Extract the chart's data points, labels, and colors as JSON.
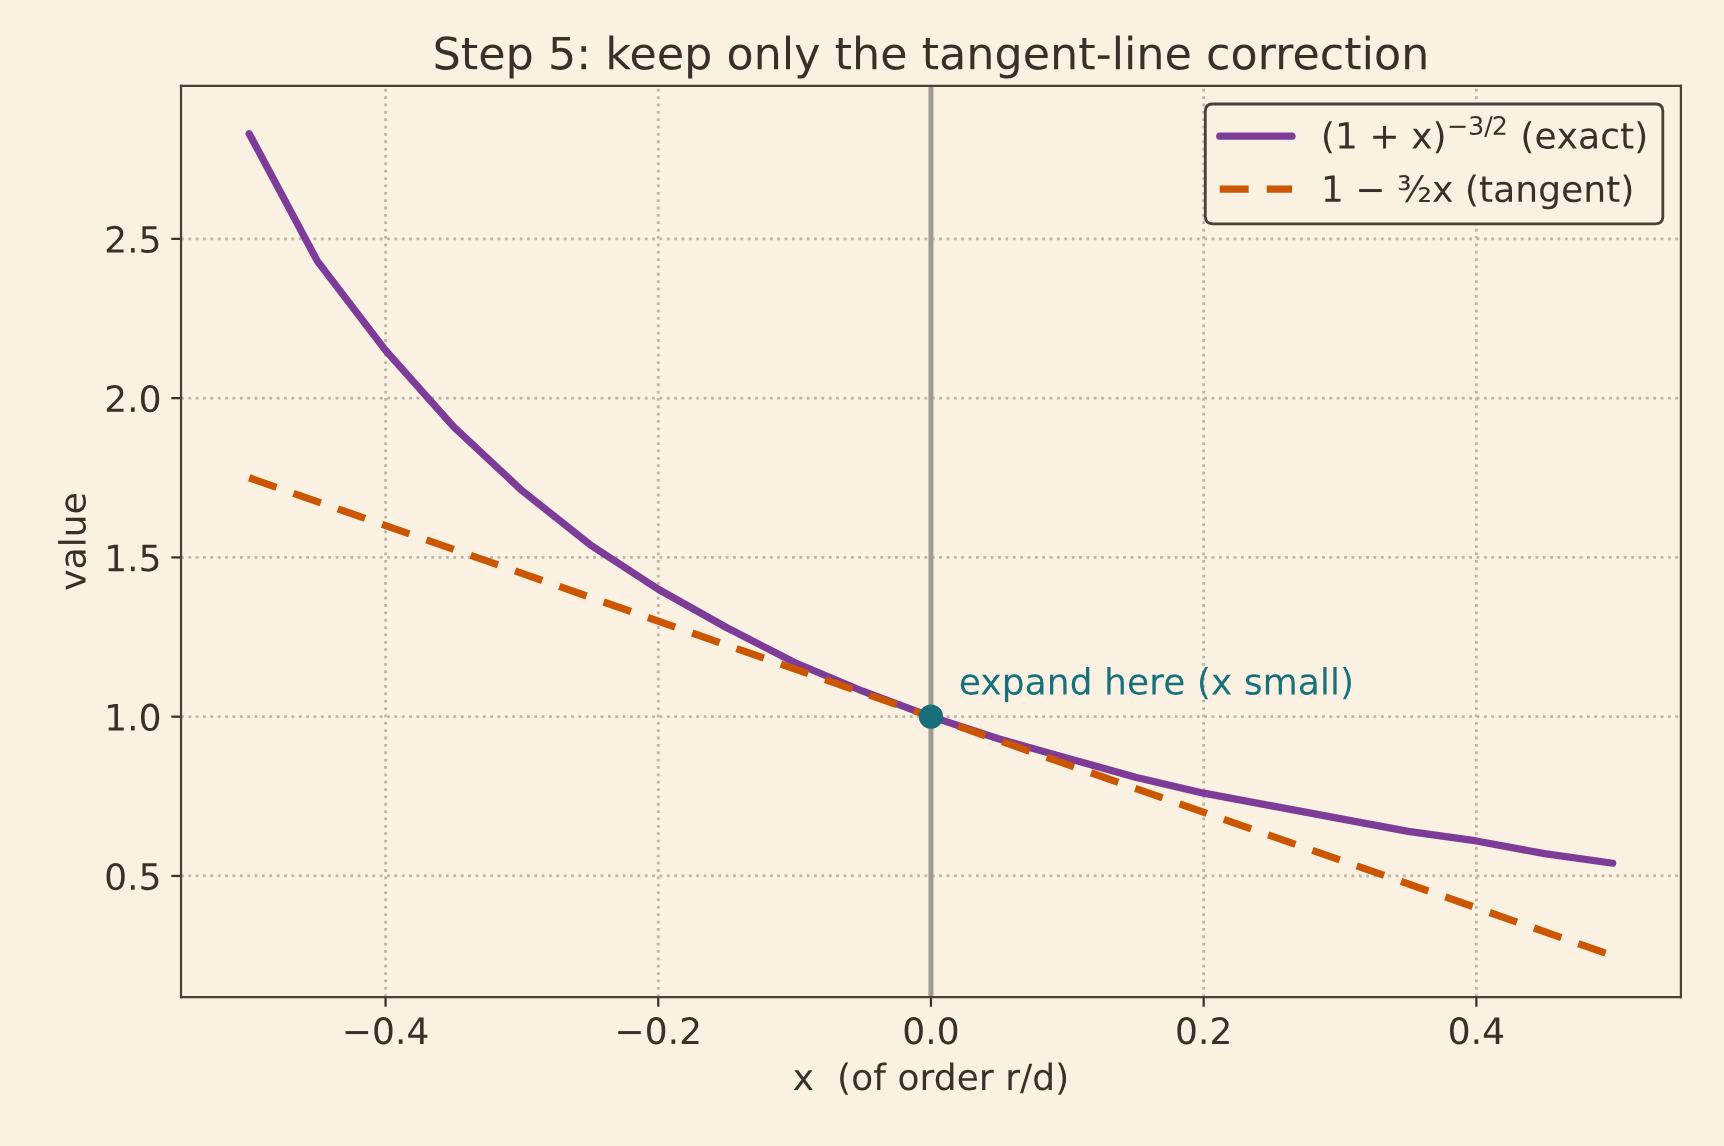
{
  "chart_data": {
    "type": "line",
    "title": "Step 5: keep only the tangent-line correction",
    "xlabel": "x  (of order r/d)",
    "ylabel": "value",
    "series": [
      {
        "name": "(1 + x)$^{−3/2}$ (exact)",
        "color": "#7d3c98",
        "line_style": "solid",
        "x": [
          -0.5,
          -0.45,
          -0.4,
          -0.35,
          -0.3,
          -0.25,
          -0.2,
          -0.15,
          -0.1,
          -0.05,
          0,
          0.05,
          0.1,
          0.15,
          0.2,
          0.25,
          0.3,
          0.35,
          0.4,
          0.45,
          0.5
        ],
        "values": [
          2.83,
          2.43,
          2.15,
          1.91,
          1.71,
          1.54,
          1.4,
          1.28,
          1.17,
          1.08,
          1.0,
          0.93,
          0.87,
          0.81,
          0.76,
          0.72,
          0.68,
          0.64,
          0.61,
          0.57,
          0.54
        ]
      },
      {
        "name": "1 − ³⁄₂x (tangent)",
        "color": "#cc5500",
        "line_style": "dashed",
        "x": [
          -0.5,
          0,
          0.5
        ],
        "values": [
          1.75,
          1.0,
          0.25
        ]
      },
      {
        "type": "scatter",
        "color": "#17707a",
        "marker": "circle",
        "x": [
          0
        ],
        "values": [
          1.0
        ]
      }
    ],
    "annotations": [
      {
        "text": "expand here (x small)",
        "x": 0,
        "y": 1.0
      }
    ],
    "ref_lines": [
      {
        "axis": "x",
        "value": 0,
        "color": "#a09a90"
      }
    ],
    "xlim": [
      -0.55,
      0.55
    ],
    "ylim": [
      0.12,
      2.98
    ],
    "xticks": [
      {
        "value": -0.4,
        "label": "−0.4"
      },
      {
        "value": -0.2,
        "label": "−0.2"
      },
      {
        "value": 0,
        "label": "0.0"
      },
      {
        "value": 0.2,
        "label": "0.2"
      },
      {
        "value": 0.4,
        "label": "0.4"
      }
    ],
    "yticks": [
      {
        "value": 0.5,
        "label": "0.5"
      },
      {
        "value": 1.0,
        "label": "1.0"
      },
      {
        "value": 1.5,
        "label": "1.5"
      },
      {
        "value": 2.0,
        "label": "2.0"
      },
      {
        "value": 2.5,
        "label": "2.5"
      }
    ],
    "grid": true,
    "legend": "top right"
  }
}
